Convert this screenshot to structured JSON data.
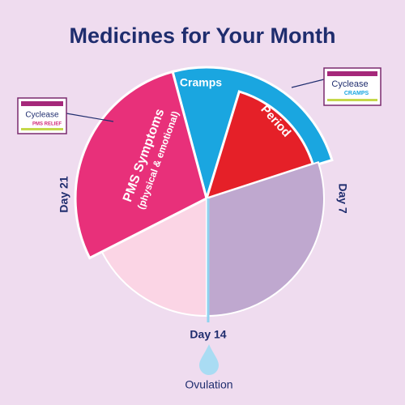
{
  "title": "Medicines for Your Month",
  "segments": {
    "cramps": "Cramps",
    "period": "Period",
    "pms": "PMS Symptoms",
    "pms_note": "(physical & emotional)"
  },
  "days": {
    "day21": "Day 21",
    "day7": "Day 7",
    "day14": "Day 14"
  },
  "ovulation": "Ovulation",
  "logos": [
    {
      "brand": "Cyclease",
      "product": "PMS RELIEF"
    },
    {
      "brand": "Cyclease",
      "product": "CRAMPS"
    }
  ]
}
